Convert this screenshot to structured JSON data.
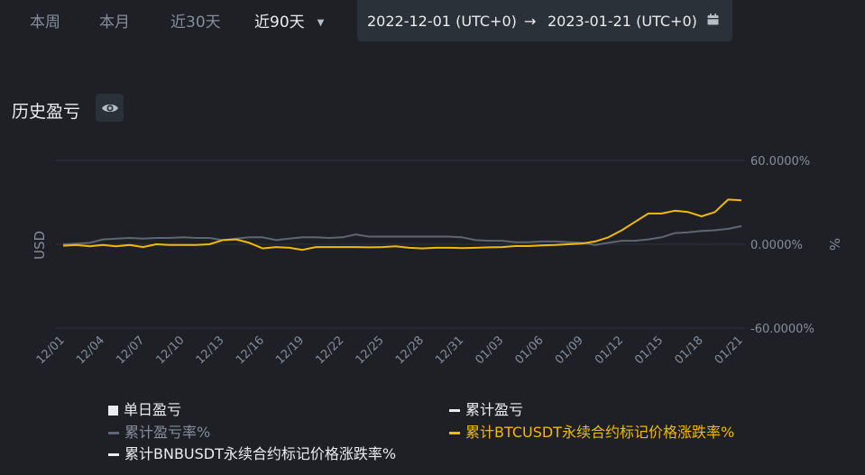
{
  "tabs": [
    {
      "label": "本周",
      "active": false
    },
    {
      "label": "本月",
      "active": false
    },
    {
      "label": "近30天",
      "active": false
    },
    {
      "label": "近90天",
      "active": true
    }
  ],
  "date_range": {
    "start": "2022-12-01 (UTC+0)",
    "arrow": "→",
    "end": "2023-01-21 (UTC+0)",
    "icon": "calendar-icon"
  },
  "section": {
    "title": "历史盈亏",
    "visibility_icon": "eye-icon"
  },
  "colors": {
    "background": "#1e2026",
    "grid": "#2e323a",
    "muted_text": "#848e9c",
    "gray_series": "#5e6673",
    "btc_series": "#f0b90b",
    "white_series": "#eaecef"
  },
  "chart_data": {
    "type": "line",
    "left_axis_label": "USD",
    "right_axis_label": "%",
    "ylim": [
      -60,
      60
    ],
    "y_ticks": [
      {
        "value": 60,
        "label": "60.0000%"
      },
      {
        "value": 0,
        "label": "0.0000%"
      },
      {
        "value": -60,
        "label": "-60.0000%"
      }
    ],
    "x_ticks": [
      "12/01",
      "12/04",
      "12/07",
      "12/10",
      "12/13",
      "12/16",
      "12/19",
      "12/22",
      "12/25",
      "12/28",
      "12/31",
      "01/03",
      "01/06",
      "01/09",
      "01/12",
      "01/15",
      "01/18",
      "01/21"
    ],
    "dates": [
      "12/01",
      "12/02",
      "12/03",
      "12/04",
      "12/05",
      "12/06",
      "12/07",
      "12/08",
      "12/09",
      "12/10",
      "12/11",
      "12/12",
      "12/13",
      "12/14",
      "12/15",
      "12/16",
      "12/17",
      "12/18",
      "12/19",
      "12/20",
      "12/21",
      "12/22",
      "12/23",
      "12/24",
      "12/25",
      "12/26",
      "12/27",
      "12/28",
      "12/29",
      "12/30",
      "12/31",
      "01/01",
      "01/02",
      "01/03",
      "01/04",
      "01/05",
      "01/06",
      "01/07",
      "01/08",
      "01/09",
      "01/10",
      "01/11",
      "01/12",
      "01/13",
      "01/14",
      "01/15",
      "01/16",
      "01/17",
      "01/18",
      "01/19",
      "01/20",
      "01/21"
    ],
    "series": [
      {
        "name": "累计盈亏率%",
        "color": "#5e6673",
        "values": [
          0,
          0.5,
          1,
          3.5,
          4,
          4.5,
          4,
          4.5,
          4.5,
          5,
          4.5,
          4.5,
          3,
          4,
          5,
          5,
          3,
          4,
          5,
          5,
          4.5,
          5,
          7,
          5.5,
          5.5,
          5.5,
          5.5,
          5.5,
          5.5,
          5.5,
          5,
          3,
          2.5,
          2.5,
          1.5,
          1.5,
          2,
          2,
          1.5,
          1,
          -0.5,
          1,
          2.5,
          2.5,
          3.5,
          5,
          8,
          8.5,
          9.5,
          10,
          11,
          13
        ]
      },
      {
        "name": "累计BTCUSDT永续合约标记价格涨跌率%",
        "color": "#f0b90b",
        "values": [
          -1,
          -0.5,
          -1.5,
          -0.5,
          -1.5,
          -0.5,
          -2,
          0,
          -0.5,
          -0.5,
          -0.5,
          0,
          3,
          3.5,
          1,
          -3,
          -2,
          -2.5,
          -4,
          -2,
          -2,
          -2,
          -2,
          -2.2,
          -2,
          -1.5,
          -2.5,
          -3,
          -2.5,
          -2.5,
          -2.7,
          -2.5,
          -2.2,
          -2,
          -1.3,
          -1.3,
          -0.8,
          -0.5,
          0,
          0.5,
          2,
          5,
          10,
          16,
          22,
          22,
          24,
          23,
          20,
          23,
          32,
          31.5
        ]
      }
    ]
  },
  "legend": [
    {
      "label": "单日盈亏",
      "swatch": "square",
      "color": "#eaecef"
    },
    {
      "label": "累计盈亏",
      "swatch": "line",
      "color": "#eaecef"
    },
    {
      "label": "累计盈亏率%",
      "swatch": "line",
      "color": "#5e6673"
    },
    {
      "label": "累计BTCUSDT永续合约标记价格涨跌率%",
      "swatch": "line",
      "color": "#f0b90b"
    },
    {
      "label": "累计BNBUSDT永续合约标记价格涨跌率%",
      "swatch": "line",
      "color": "#eaecef"
    }
  ]
}
